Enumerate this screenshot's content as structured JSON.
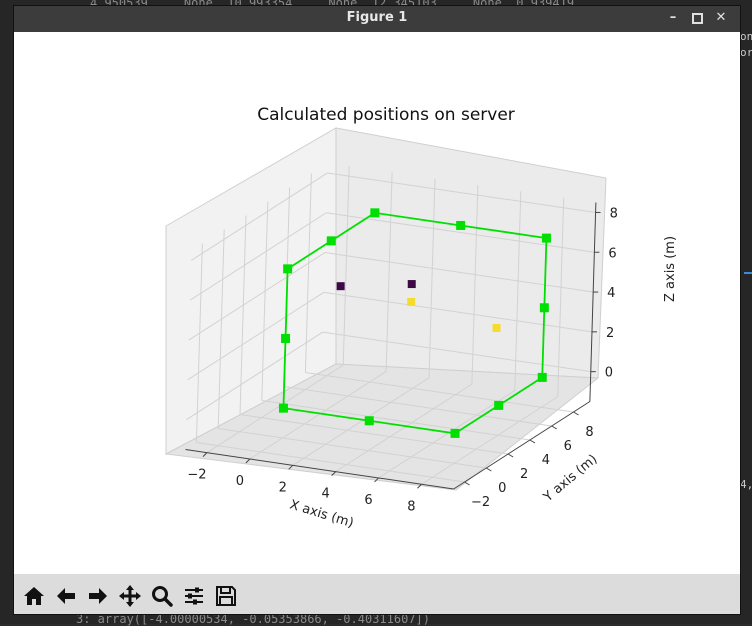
{
  "window": {
    "title": "Figure 1",
    "buttons": {
      "minimize": "–",
      "maximize": "□",
      "close": "✕"
    }
  },
  "background_terminal": {
    "top_line": "4.950539     None  10.993354     None  12.345103     None  0.939419",
    "right_lines": [
      "on",
      "or",
      "4,"
    ],
    "bottom_line": "3: array([-4.00000534, -0.05353866, -0.40311607])"
  },
  "toolbar": {
    "items": [
      {
        "name": "home-icon",
        "label": "Home"
      },
      {
        "name": "back-icon",
        "label": "Back"
      },
      {
        "name": "forward-icon",
        "label": "Forward"
      },
      {
        "name": "pan-icon",
        "label": "Pan"
      },
      {
        "name": "zoom-icon",
        "label": "Zoom"
      },
      {
        "name": "configure-icon",
        "label": "Configure subplots"
      },
      {
        "name": "save-icon",
        "label": "Save"
      }
    ]
  },
  "chart_data": {
    "type": "scatter",
    "title": "Calculated positions on server",
    "xlabel": "X axis (m)",
    "ylabel": "Y axis (m)",
    "zlabel": "Z axis (m)",
    "xlim": [
      -3,
      9.5
    ],
    "ylim": [
      -3,
      9.5
    ],
    "zlim": [
      -1.5,
      8.5
    ],
    "xticks": [
      "−2",
      "0",
      "2",
      "4",
      "6",
      "8"
    ],
    "yticks": [
      "−2",
      "0",
      "2",
      "4",
      "6",
      "8"
    ],
    "zticks": [
      "0",
      "2",
      "4",
      "6",
      "8"
    ],
    "grid": true,
    "series": [
      {
        "type": "line",
        "color": "#00e000",
        "marker": "square",
        "points": [
          [
            0,
            0,
            0
          ],
          [
            4,
            0,
            0
          ],
          [
            8,
            0,
            0
          ],
          [
            8,
            4,
            0
          ],
          [
            8,
            8,
            0
          ],
          [
            8,
            8,
            3.5
          ],
          [
            8,
            8,
            7
          ],
          [
            4,
            8,
            7
          ],
          [
            0,
            8,
            7
          ],
          [
            0,
            4,
            7
          ],
          [
            0,
            0,
            7
          ],
          [
            0,
            0,
            3.5
          ],
          [
            0,
            0,
            0
          ]
        ]
      },
      {
        "type": "scatter",
        "marker": "square",
        "points": [
          {
            "x": 0.5,
            "y": 4.0,
            "z": 4.8,
            "color": "#3b0a45"
          },
          {
            "x": 3.3,
            "y": 5.0,
            "z": 5.0,
            "color": "#3b0a45"
          },
          {
            "x": 3.3,
            "y": 5.0,
            "z": 4.1,
            "color": "#f5dc2c"
          },
          {
            "x": 6.8,
            "y": 6.0,
            "z": 3.0,
            "color": "#f5dc2c"
          }
        ]
      }
    ]
  }
}
